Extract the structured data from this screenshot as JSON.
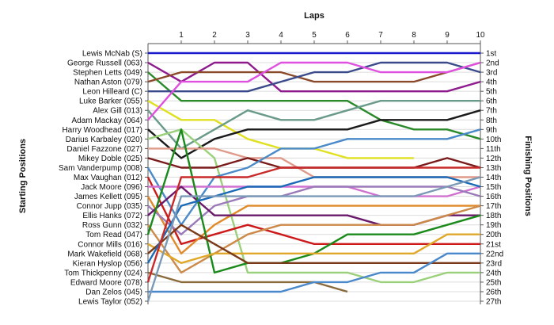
{
  "chart_data": {
    "type": "line",
    "title": "Laps",
    "ylabel_left": "Starting Positions",
    "ylabel_right": "Finishing Positions",
    "laps": [
      1,
      2,
      3,
      4,
      5,
      6,
      7,
      8,
      9,
      10
    ],
    "xlim": [
      0,
      10
    ],
    "ylim": [
      1,
      27
    ],
    "positions_right": [
      "1st",
      "2nd",
      "3rd",
      "4th",
      "5th",
      "6th",
      "7th",
      "8th",
      "9th",
      "10th",
      "11th",
      "12th",
      "13th",
      "14th",
      "15th",
      "16th",
      "17th",
      "18th",
      "19th",
      "20th",
      "21st",
      "22nd",
      "23rd",
      "24th",
      "25th",
      "26th",
      "27th"
    ],
    "series": [
      {
        "name": "Lewis McNab (S)",
        "color": "#1a1acc",
        "positions": [
          1,
          1,
          1,
          1,
          1,
          1,
          1,
          1,
          1,
          1,
          1
        ]
      },
      {
        "name": "George Russell (063)",
        "color": "#8e1a8e",
        "positions": [
          2,
          4,
          2,
          2,
          5,
          5,
          5,
          5,
          5,
          5,
          4
        ]
      },
      {
        "name": "Stephen Letts (049)",
        "color": "#2a8a2a",
        "positions": [
          3,
          6,
          6,
          6,
          6,
          6,
          6,
          8,
          9,
          9,
          10
        ]
      },
      {
        "name": "Nathan Aston (079)",
        "color": "#8a4a2a",
        "positions": [
          4,
          3,
          3,
          3,
          3,
          4,
          4,
          4,
          4,
          3,
          2
        ]
      },
      {
        "name": "Leon Hilleard (C)",
        "color": "#3a4a8a",
        "positions": [
          5,
          5,
          5,
          5,
          4,
          3,
          3,
          2,
          2,
          2,
          3
        ]
      },
      {
        "name": "Luke Barker (055)",
        "color": "#e0e020",
        "positions": [
          6,
          8,
          8,
          10,
          11,
          11,
          12,
          12,
          12,
          null,
          null
        ]
      },
      {
        "name": "Alex Gill (013)",
        "color": "#6a9a8a",
        "positions": [
          7,
          11,
          9,
          7,
          8,
          8,
          7,
          6,
          6,
          6,
          6
        ]
      },
      {
        "name": "Adam Mackay (064)",
        "color": "#e050e0",
        "positions": [
          8,
          4,
          4,
          4,
          2,
          2,
          2,
          3,
          3,
          3,
          2
        ]
      },
      {
        "name": "Harry Woodhead (017)",
        "color": "#1a1a1a",
        "positions": [
          9,
          12,
          10,
          9,
          9,
          9,
          9,
          8,
          8,
          8,
          7
        ]
      },
      {
        "name": "Darius Karbaley (020)",
        "color": "#9ad07a",
        "positions": [
          10,
          9,
          12,
          24,
          24,
          24,
          24,
          25,
          25,
          24,
          24
        ]
      },
      {
        "name": "Daniel Fazzone (027)",
        "color": "#e09a8a",
        "positions": [
          11,
          11,
          11,
          12,
          12,
          14,
          14,
          14,
          14,
          14,
          14
        ]
      },
      {
        "name": "Mikey Doble (025)",
        "color": "#7a1a1a",
        "positions": [
          12,
          13,
          13,
          12,
          13,
          13,
          13,
          13,
          13,
          12,
          13
        ]
      },
      {
        "name": "Sam Vanderpump (008)",
        "color": "#4a8ac8",
        "positions": [
          13,
          19,
          14,
          13,
          11,
          11,
          10,
          10,
          10,
          10,
          9
        ]
      },
      {
        "name": "Max Vaughan (012)",
        "color": "#cc1a1a",
        "positions": [
          14,
          21,
          20,
          19,
          20,
          21,
          21,
          21,
          21,
          21,
          21
        ]
      },
      {
        "name": "Jack Moore (096)",
        "color": "#d070d0",
        "positions": [
          15,
          15,
          15,
          15,
          15,
          15,
          15,
          16,
          16,
          16,
          15
        ]
      },
      {
        "name": "James Kellett (095)",
        "color": "#e08a2a",
        "positions": [
          16,
          22,
          19,
          17,
          17,
          17,
          17,
          17,
          17,
          17,
          17
        ]
      },
      {
        "name": "Connor Jupp (035)",
        "color": "#9a7ab8",
        "positions": [
          17,
          20,
          17,
          16,
          16,
          15,
          15,
          15,
          15,
          15,
          16
        ]
      },
      {
        "name": "Ellis Hanks (072)",
        "color": "#6a1a6a",
        "positions": [
          18,
          15,
          18,
          18,
          18,
          18,
          18,
          19,
          19,
          18,
          18
        ]
      },
      {
        "name": "Ross Gunn (032)",
        "color": "#cc8a4a",
        "positions": [
          19,
          24,
          22,
          20,
          19,
          19,
          19,
          19,
          19,
          18,
          17
        ]
      },
      {
        "name": "Tom Read (047)",
        "color": "#1a8a1a",
        "positions": [
          20,
          9,
          24,
          23,
          23,
          22,
          20,
          20,
          20,
          19,
          18
        ]
      },
      {
        "name": "Connor Mills (016)",
        "color": "#e0a82a",
        "positions": [
          21,
          23,
          22,
          22,
          22,
          22,
          22,
          22,
          22,
          20,
          20
        ]
      },
      {
        "name": "Mark Wakefield (068)",
        "color": "#7a3a1a",
        "positions": [
          22,
          19,
          21,
          23,
          23,
          23,
          23,
          23,
          23,
          23,
          23
        ]
      },
      {
        "name": "Kieran Hyslop (056)",
        "color": "#1a6ab8",
        "positions": [
          23,
          17,
          16,
          15,
          15,
          14,
          14,
          14,
          14,
          14,
          15
        ]
      },
      {
        "name": "Tom Thickpenny (024)",
        "color": "#8a6a3a",
        "positions": [
          24,
          25,
          25,
          25,
          25,
          25,
          26,
          null,
          null,
          null,
          null
        ]
      },
      {
        "name": "Edward Moore (078)",
        "color": "#c82a2a",
        "positions": [
          25,
          14,
          14,
          14,
          13,
          13,
          13,
          13,
          13,
          13,
          13
        ]
      },
      {
        "name": "Dan Zelos (045)",
        "color": "#4a88cc",
        "positions": [
          26,
          26,
          26,
          26,
          26,
          25,
          25,
          24,
          24,
          22,
          22
        ]
      },
      {
        "name": "Lewis Taylor (052)",
        "color": "#7a9ab8",
        "positions": [
          27,
          16,
          16,
          16,
          16,
          16,
          16,
          16,
          16,
          15,
          14
        ]
      }
    ]
  }
}
